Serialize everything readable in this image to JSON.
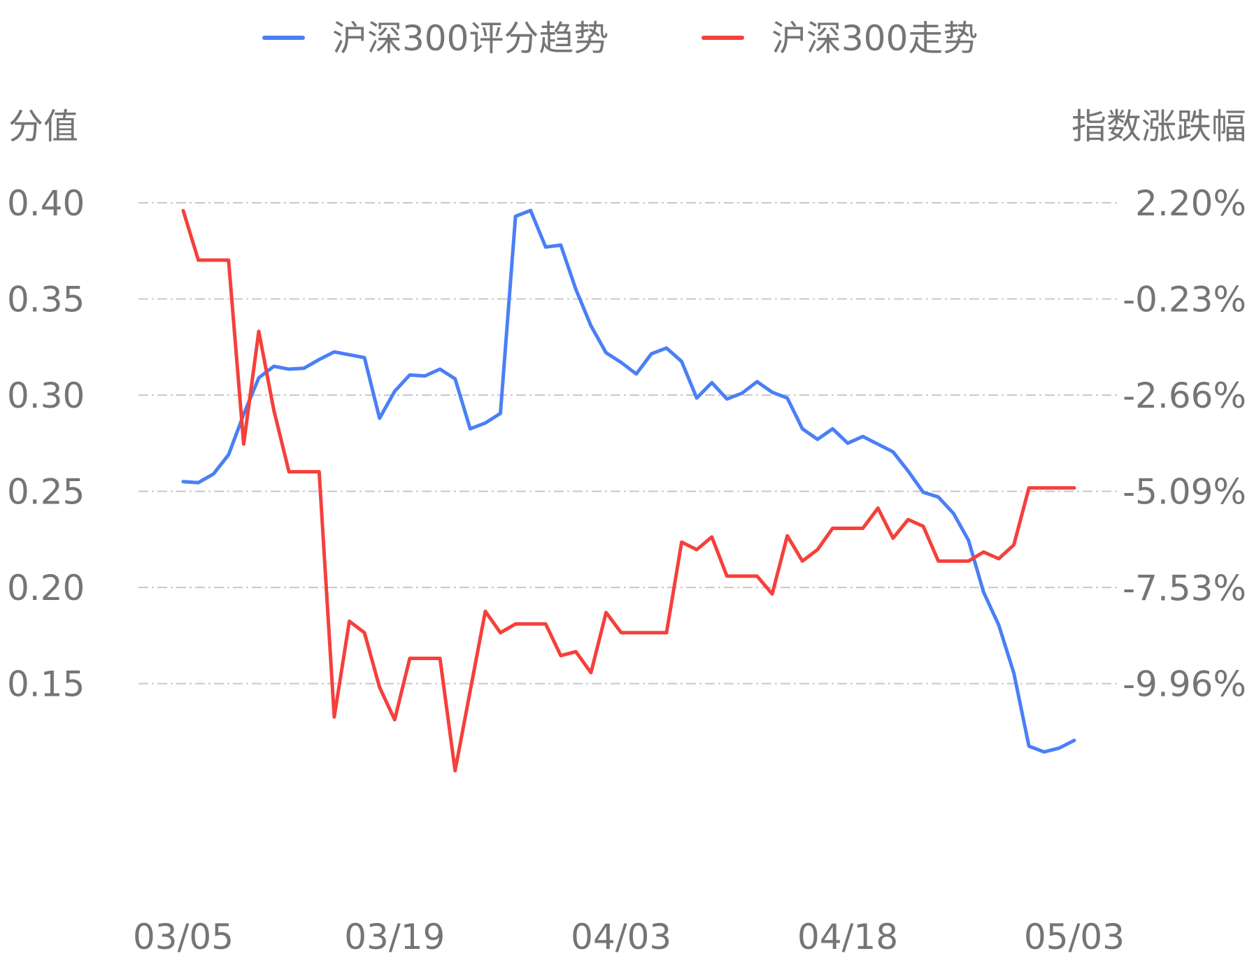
{
  "chart_data": {
    "type": "line",
    "legend": {
      "position": "top-center",
      "items": [
        {
          "label": "沪深300评分趋势",
          "color": "#4a7ff5"
        },
        {
          "label": "沪深300走势",
          "color": "#f5403b"
        }
      ]
    },
    "y_left": {
      "title": "分值",
      "ticks": [
        "0.40",
        "0.35",
        "0.30",
        "0.25",
        "0.20",
        "0.15"
      ],
      "ylim": [
        0.1037,
        0.4
      ]
    },
    "y_right": {
      "title": "指数涨跌幅",
      "ticks": [
        "2.20%",
        "-0.23%",
        "-2.66%",
        "-5.09%",
        "-7.53%",
        "-9.96%"
      ],
      "ylim": [
        -12.21,
        2.2
      ],
      "unit": "%"
    },
    "x_ticks": [
      {
        "label": "03/05",
        "index": 0
      },
      {
        "label": "03/19",
        "index": 14
      },
      {
        "label": "04/03",
        "index": 29
      },
      {
        "label": "04/18",
        "index": 44
      },
      {
        "label": "05/03",
        "index": 59
      }
    ],
    "grid": true,
    "series": [
      {
        "name": "沪深300评分趋势",
        "axis": "left",
        "color": "#4a7ff5",
        "values": [
          0.255,
          0.2545,
          0.259,
          0.269,
          0.29,
          0.309,
          0.315,
          0.3135,
          0.314,
          0.3185,
          0.3225,
          0.321,
          0.3195,
          0.288,
          0.302,
          0.3105,
          0.31,
          0.3135,
          0.3085,
          0.2825,
          0.2855,
          0.2905,
          0.393,
          0.396,
          0.377,
          0.378,
          0.355,
          0.336,
          0.322,
          0.317,
          0.311,
          0.3215,
          0.3245,
          0.3175,
          0.2985,
          0.3065,
          0.298,
          0.301,
          0.307,
          0.3015,
          0.2985,
          0.2825,
          0.277,
          0.2825,
          0.275,
          0.2785,
          0.2745,
          0.2705,
          0.2605,
          0.2495,
          0.247,
          0.2385,
          0.2245,
          0.1975,
          0.1805,
          0.1555,
          0.1175,
          0.1145,
          0.1165,
          0.1205
        ]
      },
      {
        "name": "沪深300走势",
        "axis": "right",
        "color": "#f5403b",
        "values": [
          2.0,
          0.75,
          0.75,
          0.75,
          -3.9,
          -1.05,
          -3.05,
          -4.6,
          -4.6,
          -4.6,
          -10.8,
          -8.38,
          -8.67,
          -10.05,
          -10.87,
          -9.32,
          -9.32,
          -9.32,
          -12.16,
          -10.14,
          -8.13,
          -8.67,
          -8.45,
          -8.45,
          -8.45,
          -9.25,
          -9.15,
          -9.68,
          -8.16,
          -8.67,
          -8.67,
          -8.67,
          -8.67,
          -6.38,
          -6.57,
          -6.25,
          -7.24,
          -7.24,
          -7.24,
          -7.69,
          -6.22,
          -6.86,
          -6.57,
          -6.03,
          -6.03,
          -6.03,
          -5.52,
          -6.28,
          -5.81,
          -5.98,
          -6.86,
          -6.86,
          -6.86,
          -6.63,
          -6.8,
          -6.45,
          -5.01,
          -5.01,
          -5.01,
          -5.01
        ]
      }
    ]
  }
}
